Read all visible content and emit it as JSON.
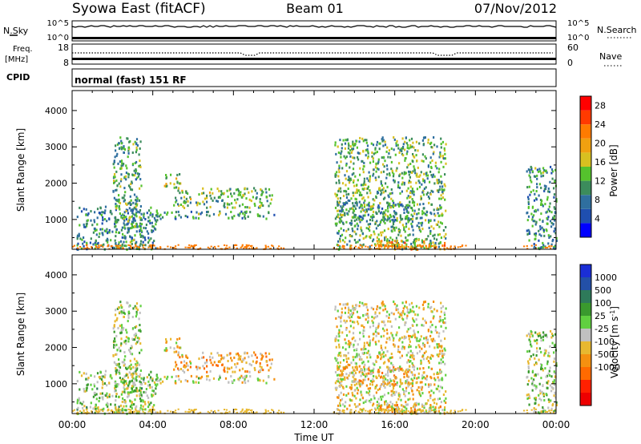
{
  "header": {
    "title_left": "Syowa East (fitACF)",
    "title_center": "Beam 01",
    "title_right": "07/Nov/2012"
  },
  "strip_panels": {
    "nsky_label": "N.Sky",
    "nsky_top": "10^5",
    "nsky_bottom": "10^0",
    "nsearch_label": "N.Search",
    "nsearch_top": "10^5",
    "nsearch_bottom": "10^0",
    "freq_label_1": "Freq.",
    "freq_label_2": "[MHz]",
    "freq_top": "18",
    "freq_bottom": "8",
    "nave_label": "Nave",
    "nave_top": "60",
    "nave_bottom": "0",
    "cpid_label": "CPID",
    "cpid_text": "normal (fast) 151 RF"
  },
  "colors": {
    "power_scale": [
      "#0000ff",
      "#1f4fb0",
      "#2f6f9f",
      "#3c8c5c",
      "#55c22d",
      "#d8c020",
      "#f0a010",
      "#ff7b00",
      "#ff3a00",
      "#ff0000"
    ],
    "velocity_scale": [
      "#1a2ed6",
      "#2350a8",
      "#2e7a5a",
      "#3a9a2e",
      "#60d040",
      "#c0c0c0",
      "#e8b830",
      "#f59010",
      "#ff6a00",
      "#ff2000",
      "#ee0000"
    ]
  },
  "chart_data": [
    {
      "type": "heatmap",
      "panel": "power",
      "ylabel": "Slant Range [km]",
      "y_ticks": [
        "1000",
        "2000",
        "3000",
        "4000"
      ],
      "ylim": [
        180,
        4550
      ],
      "x_ticks": [
        "00:00",
        "04:00",
        "08:00",
        "12:00",
        "16:00",
        "20:00",
        "00:00"
      ],
      "xlim_hours": [
        0,
        24
      ],
      "colorbar_label": "Power [dB]",
      "colorbar_ticks": [
        "4",
        "8",
        "12",
        "16",
        "20",
        "24",
        "28"
      ],
      "colorbar_range": [
        0,
        30
      ],
      "regions": [
        {
          "t0": 0.2,
          "t1": 4.2,
          "r0": 200,
          "r1": 1400,
          "value": 9
        },
        {
          "t0": 2.0,
          "t1": 3.4,
          "r0": 200,
          "r1": 3300,
          "value": 11
        },
        {
          "t0": 4.5,
          "t1": 5.4,
          "r0": 1900,
          "r1": 2300,
          "value": 15
        },
        {
          "t0": 5.0,
          "t1": 9.9,
          "r0": 1350,
          "r1": 1900,
          "value": 13
        },
        {
          "t0": 4.0,
          "t1": 10.0,
          "r0": 1050,
          "r1": 1250,
          "value": 10
        },
        {
          "t0": 13.0,
          "t1": 16.7,
          "r0": 950,
          "r1": 1500,
          "value": 9
        },
        {
          "t0": 13.0,
          "t1": 18.5,
          "r0": 200,
          "r1": 3300,
          "value": 12
        },
        {
          "t0": 15.0,
          "t1": 18.5,
          "r0": 200,
          "r1": 450,
          "value": 20
        },
        {
          "t0": 22.5,
          "t1": 24.0,
          "r0": 200,
          "r1": 2500,
          "value": 10
        }
      ]
    },
    {
      "type": "heatmap",
      "panel": "velocity",
      "ylabel": "Slant Range [km]",
      "y_ticks": [
        "1000",
        "2000",
        "3000",
        "4000"
      ],
      "ylim": [
        180,
        4550
      ],
      "x_ticks": [
        "00:00",
        "04:00",
        "08:00",
        "12:00",
        "16:00",
        "20:00",
        "00:00"
      ],
      "xlim_hours": [
        0,
        24
      ],
      "xlabel": "Time UT",
      "colorbar_label": "Velocity [m s^-1]",
      "colorbar_ticks": [
        "1000",
        "500",
        "100",
        "25",
        "-25",
        "-100",
        "-500",
        "-1000"
      ],
      "colorbar_range": [
        -1200,
        1200
      ],
      "regions": [
        {
          "t0": 0.2,
          "t1": 4.2,
          "r0": 200,
          "r1": 1400,
          "value": 150
        },
        {
          "t0": 2.0,
          "t1": 3.4,
          "r0": 200,
          "r1": 3300,
          "value": 100
        },
        {
          "t0": 4.5,
          "t1": 5.4,
          "r0": 1900,
          "r1": 2300,
          "value": -150
        },
        {
          "t0": 5.0,
          "t1": 9.9,
          "r0": 1350,
          "r1": 1900,
          "value": -300
        },
        {
          "t0": 4.0,
          "t1": 10.0,
          "r0": 1050,
          "r1": 1250,
          "value": -80
        },
        {
          "t0": 13.0,
          "t1": 16.7,
          "r0": 950,
          "r1": 1500,
          "value": -300
        },
        {
          "t0": 13.0,
          "t1": 18.5,
          "r0": 200,
          "r1": 3300,
          "value": -100
        },
        {
          "t0": 15.0,
          "t1": 18.5,
          "r0": 200,
          "r1": 450,
          "value": -250
        },
        {
          "t0": 22.5,
          "t1": 24.0,
          "r0": 200,
          "r1": 2500,
          "value": 120
        }
      ]
    }
  ]
}
